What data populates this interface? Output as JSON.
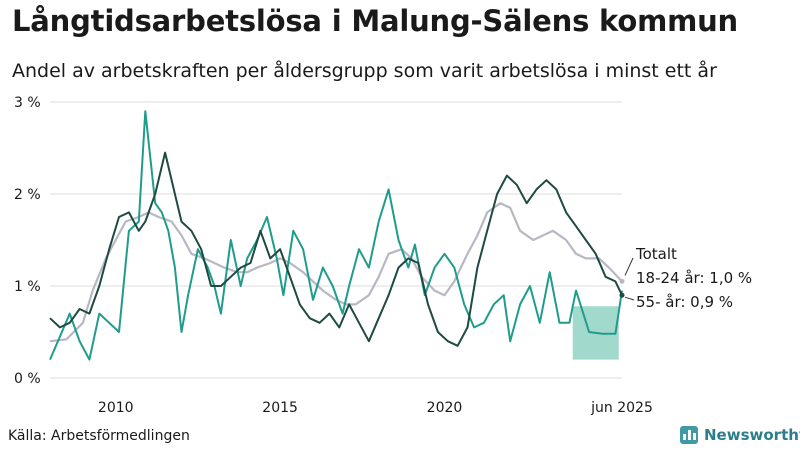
{
  "header": {
    "title": "Långtidsarbetslösa i Malung-Sälens kommun",
    "subtitle": "Andel av arbetskraften per åldersgrupp som varit arbetslösa i minst ett år"
  },
  "footer": {
    "source": "Källa: Arbetsförmedlingen",
    "logo_text": "Newsworthy",
    "logo_icon": "bar-chart-logo-icon"
  },
  "chart_data": {
    "type": "line",
    "x_unit": "year",
    "xlim": [
      2008.0,
      2025.4
    ],
    "ylim": [
      0,
      3
    ],
    "y_ticks": [
      0,
      1,
      2,
      3
    ],
    "y_tick_labels": [
      "0 %",
      "1 %",
      "2 %",
      "3 %"
    ],
    "x_ticks": [
      2010,
      2015,
      2020,
      2025.4
    ],
    "x_tick_labels": [
      "2010",
      "2015",
      "2020",
      "jun 2025"
    ],
    "grid": "horizontal",
    "colors": {
      "total": "#b8b8c4",
      "age_18_24": "#1f9c8c",
      "age_55": "#1e4a42",
      "band": "#92d2c4"
    },
    "series": [
      {
        "key": "total",
        "name": "Totalt",
        "x": [
          2008.0,
          2008.5,
          2009.0,
          2009.3,
          2009.7,
          2010.0,
          2010.3,
          2010.7,
          2011.0,
          2011.3,
          2011.7,
          2012.0,
          2012.3,
          2012.7,
          2013.0,
          2013.3,
          2013.7,
          2014.0,
          2014.3,
          2014.7,
          2015.0,
          2015.3,
          2015.7,
          2016.0,
          2016.3,
          2016.7,
          2017.0,
          2017.3,
          2017.7,
          2018.0,
          2018.3,
          2018.7,
          2019.0,
          2019.3,
          2019.7,
          2020.0,
          2020.3,
          2020.7,
          2021.0,
          2021.3,
          2021.7,
          2022.0,
          2022.3,
          2022.7,
          2023.0,
          2023.3,
          2023.7,
          2024.0,
          2024.3,
          2024.7,
          2025.0,
          2025.4
        ],
        "values": [
          0.4,
          0.42,
          0.6,
          0.95,
          1.3,
          1.5,
          1.7,
          1.75,
          1.8,
          1.75,
          1.7,
          1.55,
          1.35,
          1.3,
          1.25,
          1.2,
          1.15,
          1.15,
          1.2,
          1.25,
          1.3,
          1.25,
          1.15,
          1.05,
          0.95,
          0.85,
          0.8,
          0.8,
          0.9,
          1.1,
          1.35,
          1.4,
          1.3,
          1.1,
          0.95,
          0.9,
          1.05,
          1.35,
          1.55,
          1.8,
          1.9,
          1.85,
          1.6,
          1.5,
          1.55,
          1.6,
          1.5,
          1.35,
          1.3,
          1.3,
          1.2,
          1.05
        ]
      },
      {
        "key": "age_18_24",
        "name": "18-24 år",
        "end_label": "18-24 år: 1,0 %",
        "x": [
          2008.0,
          2008.3,
          2008.6,
          2008.9,
          2009.2,
          2009.5,
          2009.8,
          2010.1,
          2010.4,
          2010.7,
          2010.9,
          2011.2,
          2011.4,
          2011.6,
          2011.8,
          2012.0,
          2012.2,
          2012.5,
          2012.8,
          2013.0,
          2013.2,
          2013.5,
          2013.8,
          2014.0,
          2014.3,
          2014.6,
          2014.9,
          2015.1,
          2015.4,
          2015.7,
          2016.0,
          2016.3,
          2016.6,
          2016.9,
          2017.1,
          2017.4,
          2017.7,
          2018.0,
          2018.3,
          2018.6,
          2018.9,
          2019.1,
          2019.4,
          2019.7,
          2020.0,
          2020.3,
          2020.6,
          2020.9,
          2021.2,
          2021.5,
          2021.8,
          2022.0,
          2022.3,
          2022.6,
          2022.9,
          2023.2,
          2023.5,
          2023.8,
          2024.0,
          2024.4,
          2024.8,
          2025.2,
          2025.4
        ],
        "values": [
          0.2,
          0.45,
          0.7,
          0.4,
          0.2,
          0.7,
          0.6,
          0.5,
          1.6,
          1.7,
          2.9,
          1.9,
          1.8,
          1.6,
          1.2,
          0.5,
          0.9,
          1.4,
          1.2,
          1.0,
          0.7,
          1.5,
          1.0,
          1.3,
          1.5,
          1.75,
          1.3,
          0.9,
          1.6,
          1.4,
          0.85,
          1.2,
          1.0,
          0.7,
          1.0,
          1.4,
          1.2,
          1.7,
          2.05,
          1.5,
          1.2,
          1.45,
          0.9,
          1.2,
          1.35,
          1.2,
          0.8,
          0.55,
          0.6,
          0.8,
          0.9,
          0.4,
          0.8,
          1.0,
          0.6,
          1.15,
          0.6,
          0.6,
          0.95,
          0.5,
          0.48,
          0.48,
          0.95
        ]
      },
      {
        "key": "age_55",
        "name": "55- år",
        "end_label": "55- år: 0,9 %",
        "x": [
          2008.0,
          2008.3,
          2008.6,
          2008.9,
          2009.2,
          2009.5,
          2009.8,
          2010.1,
          2010.4,
          2010.7,
          2010.9,
          2011.2,
          2011.5,
          2011.8,
          2012.0,
          2012.3,
          2012.6,
          2012.9,
          2013.2,
          2013.5,
          2013.8,
          2014.1,
          2014.4,
          2014.7,
          2015.0,
          2015.3,
          2015.6,
          2015.9,
          2016.2,
          2016.5,
          2016.8,
          2017.1,
          2017.4,
          2017.7,
          2018.0,
          2018.3,
          2018.6,
          2018.9,
          2019.2,
          2019.5,
          2019.8,
          2020.1,
          2020.4,
          2020.7,
          2021.0,
          2021.3,
          2021.6,
          2021.9,
          2022.2,
          2022.5,
          2022.8,
          2023.1,
          2023.4,
          2023.7,
          2024.0,
          2024.3,
          2024.6,
          2024.9,
          2025.2,
          2025.4
        ],
        "values": [
          0.65,
          0.55,
          0.6,
          0.75,
          0.7,
          1.0,
          1.4,
          1.75,
          1.8,
          1.6,
          1.7,
          2.0,
          2.45,
          2.0,
          1.7,
          1.6,
          1.4,
          1.0,
          1.0,
          1.1,
          1.2,
          1.25,
          1.6,
          1.3,
          1.4,
          1.1,
          0.8,
          0.65,
          0.6,
          0.7,
          0.55,
          0.8,
          0.6,
          0.4,
          0.65,
          0.9,
          1.2,
          1.3,
          1.25,
          0.8,
          0.5,
          0.4,
          0.35,
          0.55,
          1.2,
          1.6,
          2.0,
          2.2,
          2.1,
          1.9,
          2.05,
          2.15,
          2.05,
          1.8,
          1.65,
          1.5,
          1.35,
          1.1,
          1.05,
          0.9
        ]
      }
    ],
    "band": {
      "name": "Totalt",
      "x": [
        2023.9,
        2025.3
      ],
      "y": [
        0.2,
        0.78
      ]
    },
    "annotations": [
      "Totalt",
      "18-24 år: 1,0 %",
      "55- år: 0,9 %"
    ]
  }
}
